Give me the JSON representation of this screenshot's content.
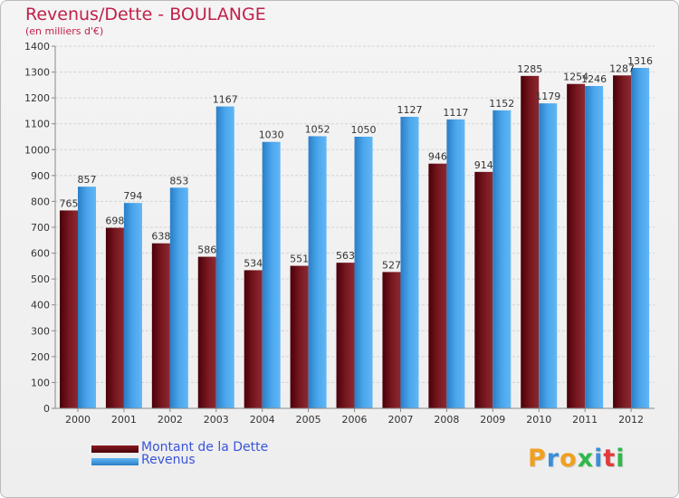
{
  "title": "Revenus/Dette - BOULANGE",
  "subtitle": "(en milliers d'€)",
  "logo": {
    "text": "Proxiti",
    "letters": [
      {
        "ch": "P",
        "color": "#f0a020"
      },
      {
        "ch": "r",
        "color": "#3b8fd8"
      },
      {
        "ch": "o",
        "color": "#f0a020"
      },
      {
        "ch": "x",
        "color": "#2fb84a"
      },
      {
        "ch": "i",
        "color": "#3b8fd8"
      },
      {
        "ch": "t",
        "color": "#e23a3a"
      },
      {
        "ch": "i",
        "color": "#2fb84a"
      }
    ]
  },
  "legend": [
    {
      "label": "Montant de la Dette",
      "color": "#6b0c14"
    },
    {
      "label": "Revenus",
      "color": "#3f9ee8"
    }
  ],
  "chart_data": {
    "type": "bar",
    "categories": [
      "2000",
      "2001",
      "2002",
      "2003",
      "2004",
      "2005",
      "2006",
      "2007",
      "2008",
      "2009",
      "2010",
      "2011",
      "2012"
    ],
    "series": [
      {
        "name": "Montant de la Dette",
        "color": "#6b0c14",
        "values": [
          765,
          698,
          638,
          586,
          534,
          551,
          563,
          527,
          946,
          914,
          1285,
          1254,
          1287
        ]
      },
      {
        "name": "Revenus",
        "color": "#3f9ee8",
        "values": [
          857,
          794,
          853,
          1167,
          1030,
          1052,
          1050,
          1127,
          1117,
          1152,
          1179,
          1246,
          1316
        ]
      }
    ],
    "ylim": [
      0,
      1400
    ],
    "yticks": [
      0,
      100,
      200,
      300,
      400,
      500,
      600,
      700,
      800,
      900,
      1000,
      1100,
      1200,
      1300,
      1400
    ],
    "grid": true,
    "legend_position": "bottom-left"
  }
}
